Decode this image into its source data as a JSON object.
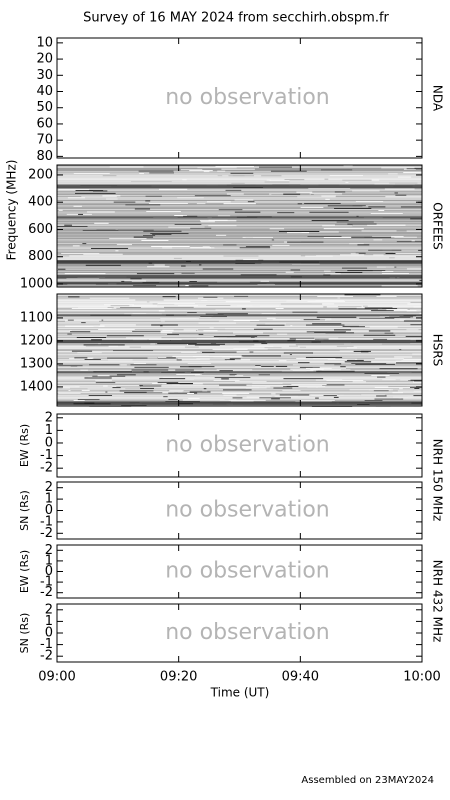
{
  "chart_data": {
    "type": "survey",
    "title": "Survey of 16 MAY 2024 from secchirh.obspm.fr",
    "footer": "Assembled on 23MAY2024",
    "ylabel": "Frequency (MHz)",
    "xlabel": "Time (UT)",
    "xlim": [
      0,
      60
    ],
    "xticks": [
      {
        "value": 0,
        "label": "09:00"
      },
      {
        "value": 20,
        "label": "09:20"
      },
      {
        "value": 40,
        "label": "09:40"
      },
      {
        "value": 60,
        "label": "10:00"
      }
    ],
    "panels": [
      {
        "name": "NDA",
        "ylim": [
          7,
          81
        ],
        "yticks": [
          10,
          20,
          30,
          40,
          50,
          60,
          70,
          80
        ],
        "status": "no observation"
      },
      {
        "name": "ORFEES",
        "ylim": [
          127,
          1022
        ],
        "yticks": [
          200,
          400,
          600,
          800,
          1000
        ],
        "display": "spectrogram"
      },
      {
        "name": "HSRS",
        "ylim": [
          996,
          1483
        ],
        "yticks": [
          1100,
          1200,
          1300,
          1400
        ],
        "display": "spectrogram"
      },
      {
        "ylabel": "EW (Rs)",
        "ylim": [
          -2.7,
          2.3
        ],
        "yticks": [
          -2,
          -1,
          0,
          1,
          2
        ],
        "status": "no observation",
        "side_label": "NRH 150 MHz"
      },
      {
        "ylabel": "SN (Rs)",
        "ylim": [
          -2.5,
          2.5
        ],
        "yticks": [
          -2,
          -1,
          0,
          1,
          2
        ],
        "status": "no observation"
      },
      {
        "ylabel": "EW (Rs)",
        "ylim": [
          -2.5,
          2.5
        ],
        "yticks": [
          -2,
          -1,
          0,
          1,
          2
        ],
        "status": "no observation",
        "side_label": "NRH 432 MHz"
      },
      {
        "ylabel": "SN (Rs)",
        "ylim": [
          -2.5,
          2.5
        ],
        "yticks": [
          -2,
          -1,
          0,
          1,
          2
        ],
        "status": "no observation"
      }
    ]
  }
}
